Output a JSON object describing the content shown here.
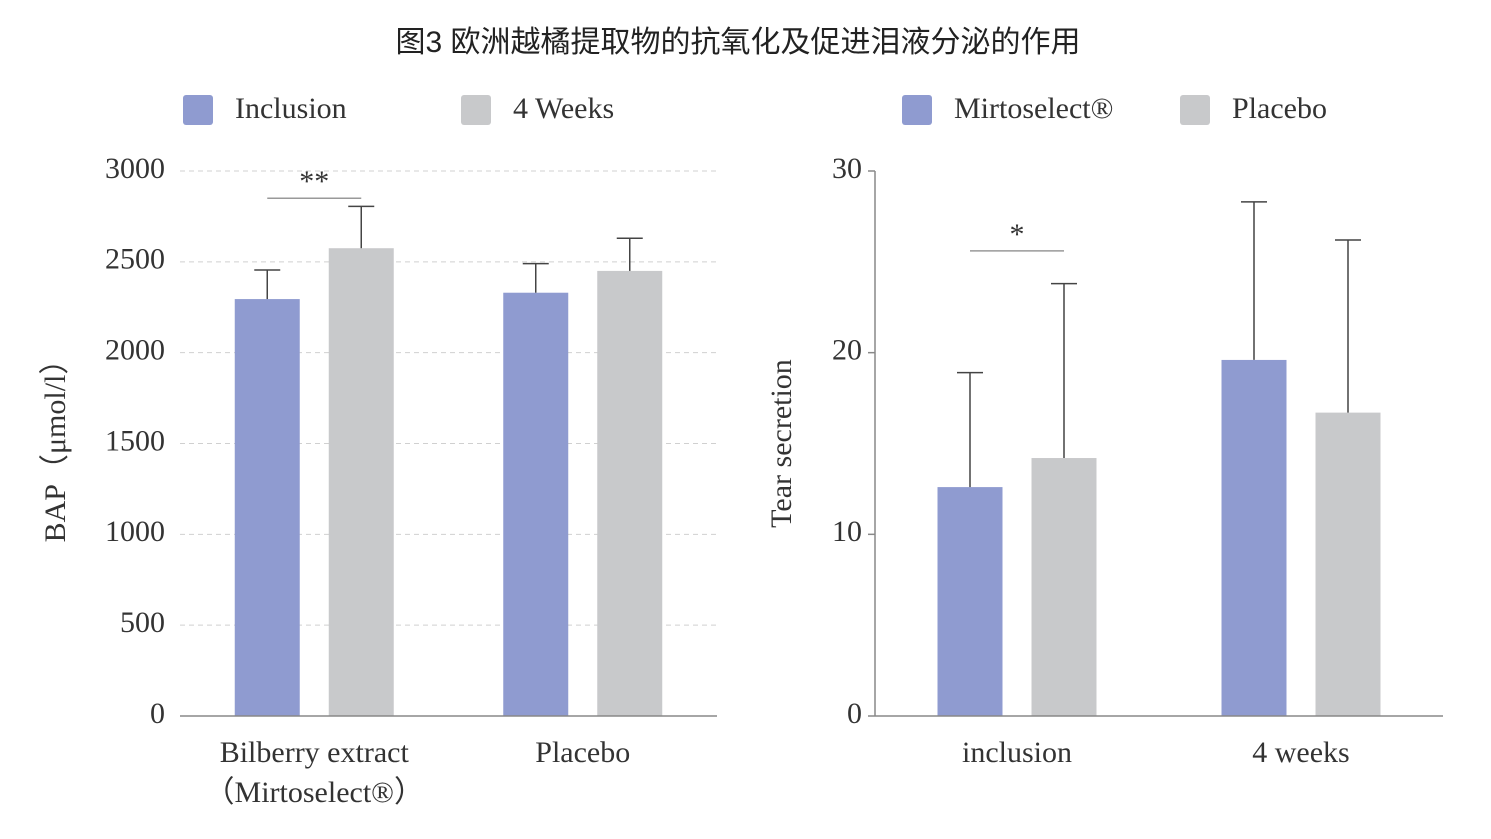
{
  "title": "图3 欧洲越橘提取物的抗氧化及促进泪液分泌的作用",
  "chart_data": [
    {
      "type": "bar",
      "ylabel": "BAP（μmol/l）",
      "categories": [
        "Bilberry extract\n（Mirtoselect®）",
        "Placebo"
      ],
      "series": [
        {
          "name": "Inclusion",
          "color": "#8f9bd0",
          "values": [
            2295,
            2330
          ],
          "errors": [
            160,
            160
          ]
        },
        {
          "name": "4 Weeks",
          "color": "#c8c9cb",
          "values": [
            2575,
            2450
          ],
          "errors": [
            230,
            180
          ]
        }
      ],
      "ylim": [
        0,
        3000
      ],
      "yticks": [
        0,
        500,
        1000,
        1500,
        2000,
        2500,
        3000
      ],
      "grid": true,
      "y_axis_line": false,
      "annotations": [
        {
          "text": "**",
          "category": 0,
          "y": 2850
        }
      ]
    },
    {
      "type": "bar",
      "ylabel": "Tear secretion",
      "categories": [
        "inclusion",
        "4 weeks"
      ],
      "series": [
        {
          "name": "Mirtoselect®",
          "color": "#8f9bd0",
          "values": [
            12.6,
            19.6
          ],
          "errors": [
            6.3,
            8.7
          ]
        },
        {
          "name": "Placebo",
          "color": "#c8c9cb",
          "values": [
            14.2,
            16.7
          ],
          "errors": [
            9.6,
            9.5
          ]
        }
      ],
      "ylim": [
        0,
        30
      ],
      "yticks": [
        0,
        10,
        20,
        30
      ],
      "grid": false,
      "y_axis_line": true,
      "annotations": [
        {
          "text": "*",
          "category": 0,
          "y": 25.6
        }
      ]
    }
  ]
}
